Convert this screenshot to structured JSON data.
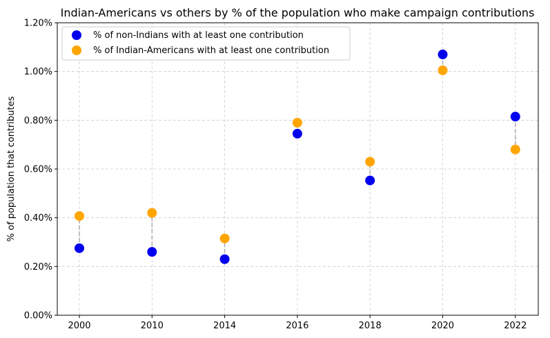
{
  "chart_data": {
    "type": "scatter",
    "title": "Indian-Americans vs others by % of the population who make campaign contributions",
    "xlabel": "",
    "ylabel": "% of population that contributes",
    "categories": [
      "2000",
      "2010",
      "2014",
      "2016",
      "2018",
      "2020",
      "2022"
    ],
    "ylim": [
      0,
      0.012
    ],
    "yticks": [
      "0.00%",
      "0.20%",
      "0.40%",
      "0.60%",
      "0.80%",
      "1.00%",
      "1.20%"
    ],
    "grid": true,
    "legend_position": "top-left",
    "connector_color": "#aaaaaa",
    "series": [
      {
        "name": "% of non-Indians with at least one contribution",
        "color": "#0000ee",
        "values": [
          0.00275,
          0.0026,
          0.0023,
          0.00745,
          0.00553,
          0.0107,
          0.00815
        ]
      },
      {
        "name": "% of Indian-Americans with at least one contribution",
        "color": "#ffa500",
        "values": [
          0.00407,
          0.0042,
          0.00315,
          0.0079,
          0.0063,
          0.01005,
          0.0068
        ]
      }
    ]
  }
}
